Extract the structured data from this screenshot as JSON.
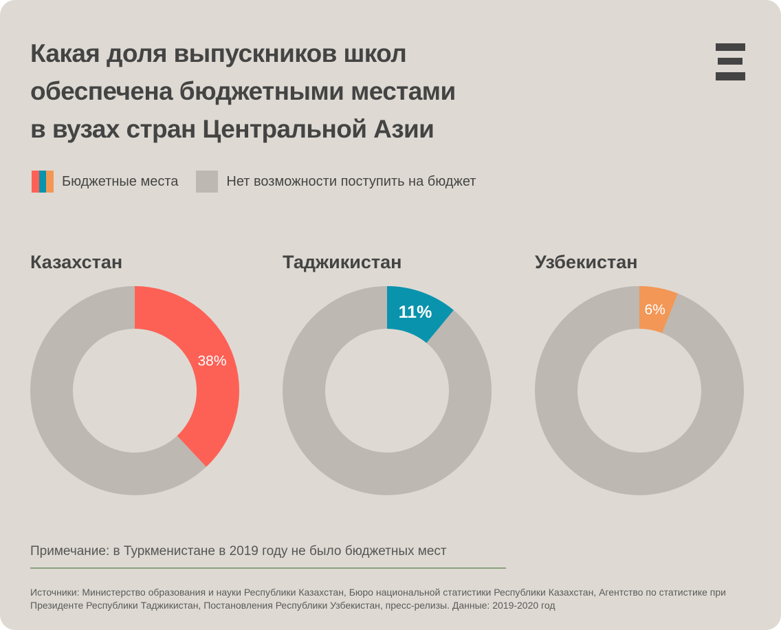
{
  "title_lines": [
    "Какая доля выпускников школ",
    "обеспечена бюджетными местами",
    "в вузах стран Центральной Азии"
  ],
  "legend": {
    "budget": "Бюджетные места",
    "no_budget": "Нет возможности поступить на бюджет"
  },
  "colors": {
    "kazakhstan": "#fd6156",
    "tajikistan": "#0a93ad",
    "uzbekistan": "#f29756",
    "rest": "#bdb8b1",
    "background": "#dedad3"
  },
  "chart_data": {
    "type": "pie",
    "title": "Какая доля выпускников школ обеспечена бюджетными местами в вузах стран Центральной Азии",
    "legend": [
      "Бюджетные места",
      "Нет возможности поступить на бюджет"
    ],
    "legend_position": "top-left",
    "charts": [
      {
        "name": "Казахстан",
        "budget": 38,
        "rest": 62,
        "label": "38%",
        "color": "#fd6156"
      },
      {
        "name": "Таджикистан",
        "budget": 11,
        "rest": 89,
        "label": "11%",
        "color": "#0a93ad"
      },
      {
        "name": "Узбекистан",
        "budget": 6,
        "rest": 94,
        "label": "6%",
        "color": "#f29756"
      }
    ]
  },
  "note": "Примечание: в Туркменистане в 2019 году не было бюджетных мест",
  "sources": "Источники: Министерство образования и науки Республики Казахстан, Бюро национальной статистики Республики Казахстан, Агентство по статистике при Президенте Республики Таджикистан, Постановления Республики Узбекистан, пресс-релизы. Данные: 2019-2020 год"
}
